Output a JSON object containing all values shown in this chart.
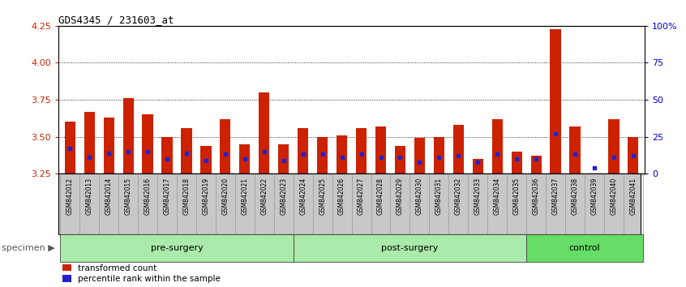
{
  "title": "GDS4345 / 231603_at",
  "samples": [
    "GSM842012",
    "GSM842013",
    "GSM842014",
    "GSM842015",
    "GSM842016",
    "GSM842017",
    "GSM842018",
    "GSM842019",
    "GSM842020",
    "GSM842021",
    "GSM842022",
    "GSM842023",
    "GSM842024",
    "GSM842025",
    "GSM842026",
    "GSM842027",
    "GSM842028",
    "GSM842029",
    "GSM842030",
    "GSM842031",
    "GSM842032",
    "GSM842033",
    "GSM842034",
    "GSM842035",
    "GSM842036",
    "GSM842037",
    "GSM842038",
    "GSM842039",
    "GSM842040",
    "GSM842041"
  ],
  "red_values": [
    3.6,
    3.67,
    3.63,
    3.76,
    3.65,
    3.5,
    3.56,
    3.44,
    3.62,
    3.45,
    3.8,
    3.45,
    3.56,
    3.5,
    3.51,
    3.56,
    3.57,
    3.44,
    3.49,
    3.5,
    3.58,
    3.35,
    3.62,
    3.4,
    3.37,
    4.23,
    3.57,
    3.23,
    3.62,
    3.5
  ],
  "blue_values": [
    3.42,
    3.36,
    3.39,
    3.4,
    3.4,
    3.35,
    3.39,
    3.34,
    3.38,
    3.35,
    3.4,
    3.34,
    3.38,
    3.38,
    3.36,
    3.38,
    3.36,
    3.36,
    3.33,
    3.36,
    3.37,
    3.33,
    3.38,
    3.35,
    3.35,
    3.52,
    3.38,
    3.29,
    3.36,
    3.37
  ],
  "groups": [
    {
      "label": "pre-surgery",
      "start": 0,
      "end": 12,
      "color": "#AAEAAA"
    },
    {
      "label": "post-surgery",
      "start": 12,
      "end": 24,
      "color": "#AAEAAA"
    },
    {
      "label": "control",
      "start": 24,
      "end": 30,
      "color": "#66DD66"
    }
  ],
  "ymin": 3.25,
  "ymax": 4.25,
  "yticks": [
    3.25,
    3.5,
    3.75,
    4.0,
    4.25
  ],
  "right_yticks": [
    0,
    25,
    50,
    75,
    100
  ],
  "right_ytick_labels": [
    "0",
    "25",
    "50",
    "75",
    "100%"
  ],
  "grid_values": [
    3.5,
    3.75,
    4.0
  ],
  "bar_color": "#CC2200",
  "blue_color": "#2222CC",
  "bar_width": 0.55,
  "specimen_label": "specimen",
  "legend_red": "transformed count",
  "legend_blue": "percentile rank within the sample",
  "tick_label_color_left": "#CC2200",
  "tick_label_color_right": "#0000CC",
  "label_bg_color": "#C8C8C8",
  "label_divider_color": "#888888"
}
